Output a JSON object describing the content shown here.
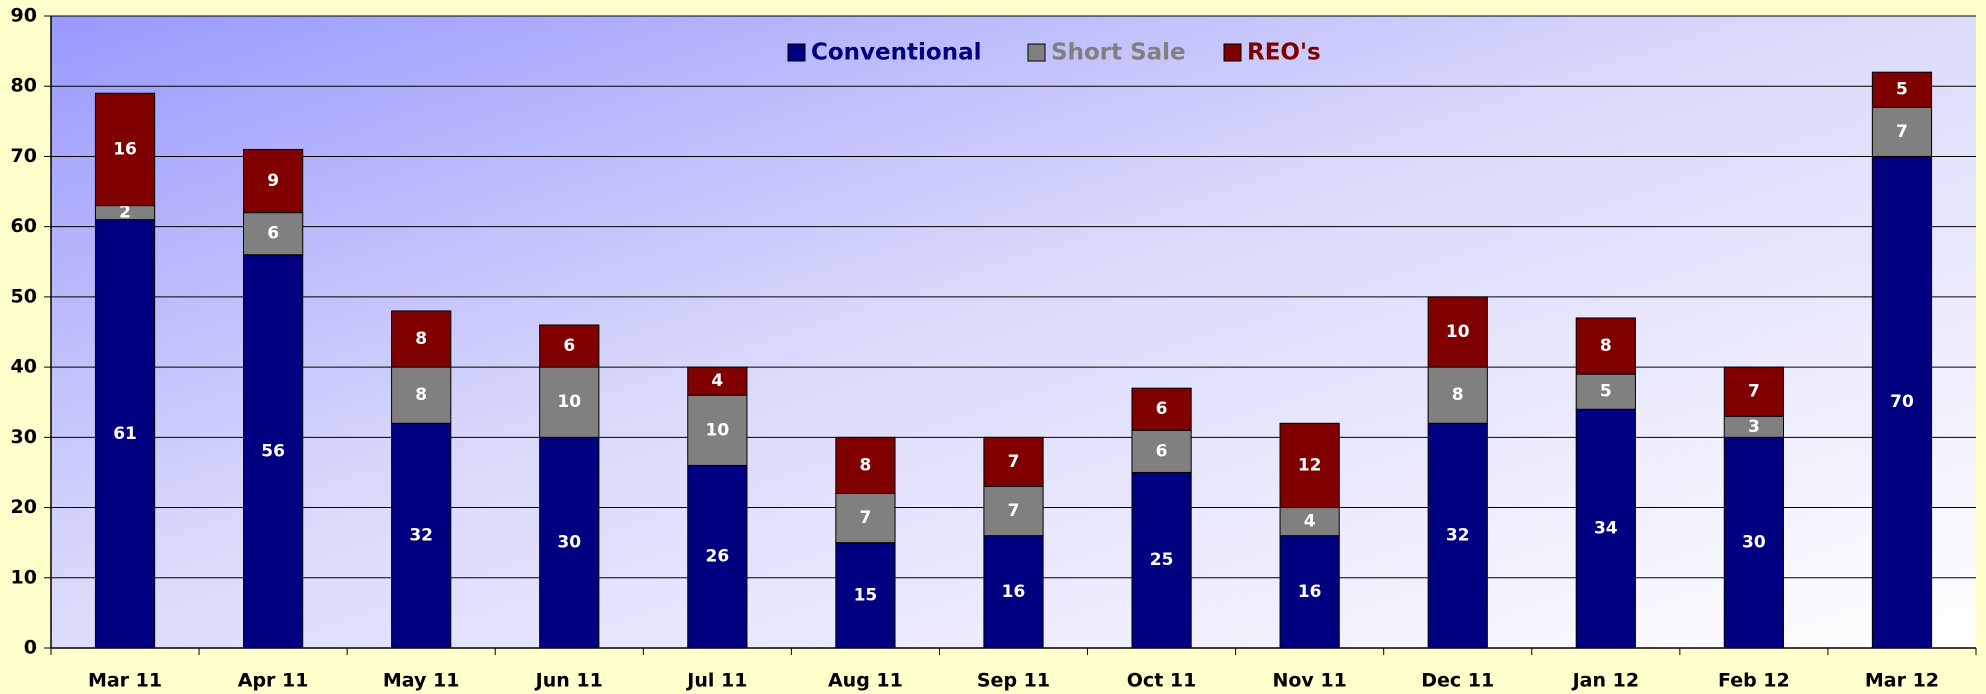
{
  "chart_data": {
    "type": "stacked_bar",
    "categories": [
      "Mar 11",
      "Apr 11",
      "May 11",
      "Jun 11",
      "Jul 11",
      "Aug 11",
      "Sep 11",
      "Oct 11",
      "Nov 11",
      "Dec 11",
      "Jan 12",
      "Feb 12",
      "Mar 12"
    ],
    "series": [
      {
        "name": "Conventional",
        "color": "#000080",
        "values": [
          61,
          56,
          32,
          30,
          26,
          15,
          16,
          25,
          16,
          32,
          34,
          30,
          70
        ]
      },
      {
        "name": "Short Sale",
        "color": "#808080",
        "values": [
          2,
          6,
          8,
          10,
          10,
          7,
          7,
          6,
          4,
          8,
          5,
          3,
          7
        ]
      },
      {
        "name": "REO's",
        "color": "#800000",
        "values": [
          16,
          9,
          8,
          6,
          4,
          8,
          7,
          6,
          12,
          10,
          8,
          7,
          5
        ]
      }
    ],
    "ylim": [
      0,
      90
    ],
    "yticks": [
      0,
      10,
      20,
      30,
      40,
      50,
      60,
      70,
      80,
      90
    ],
    "grid": true,
    "legend": "top"
  }
}
